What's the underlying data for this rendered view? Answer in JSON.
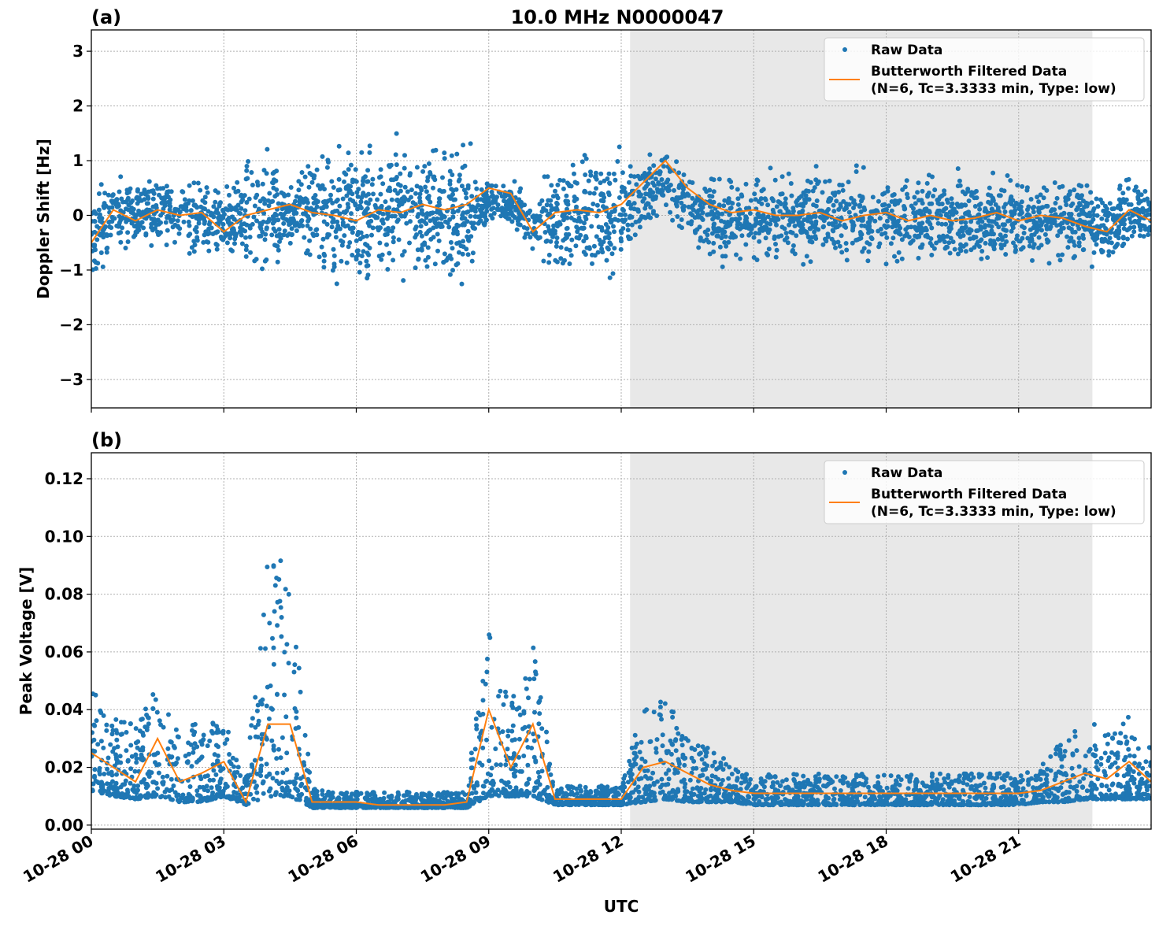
{
  "chart_data": [
    {
      "type": "scatter",
      "panel_label": "(a)",
      "title": "10.0 MHz N0000047",
      "xlabel": "",
      "ylabel": "Doppler Shift [Hz]",
      "xlim_hours": [
        0,
        24
      ],
      "ylim": [
        -3.52,
        3.39
      ],
      "y_ticks": [
        3,
        2,
        1,
        0,
        -1,
        -2,
        -3
      ],
      "y_tick_labels": [
        "3",
        "2",
        "1",
        "0",
        "−1",
        "−2",
        "−3"
      ],
      "grid": true,
      "legend_position": "top-right",
      "shaded_span_hours": [
        12.2,
        22.67
      ],
      "x_hours": [
        0,
        0.5,
        1,
        1.5,
        2,
        2.5,
        3,
        3.5,
        4,
        4.5,
        5,
        5.5,
        6,
        6.5,
        7,
        7.5,
        8,
        8.5,
        9,
        9.5,
        10,
        10.5,
        11,
        11.5,
        12,
        12.5,
        13,
        13.5,
        14,
        14.5,
        15,
        15.5,
        16,
        16.5,
        17,
        17.5,
        18,
        18.5,
        19,
        19.5,
        20,
        20.5,
        21,
        21.5,
        22,
        22.5,
        23,
        23.5,
        24
      ],
      "series": [
        {
          "name": "Raw Data",
          "kind": "points",
          "color": "#1f77b4",
          "lower": [
            -1.4,
            -1.0,
            -0.8,
            -0.8,
            -0.9,
            -1.0,
            -1.0,
            -1.6,
            -1.6,
            -0.6,
            -1.5,
            -1.5,
            -1.5,
            -1.5,
            -1.5,
            -1.5,
            -1.5,
            -1.5,
            -0.3,
            -0.3,
            -0.8,
            -1.5,
            -1.5,
            -1.5,
            -1.5,
            -0.4,
            -0.3,
            -0.6,
            -1.1,
            -1.1,
            -1.1,
            -1.1,
            -1.1,
            -1.1,
            -1.1,
            -1.1,
            -1.1,
            -1.1,
            -1.1,
            -1.1,
            -1.1,
            -1.1,
            -1.1,
            -1.1,
            -1.1,
            -1.1,
            -1.2,
            -0.9,
            -0.8
          ],
          "upper": [
            0.8,
            0.9,
            0.9,
            1.0,
            0.9,
            0.9,
            0.7,
            1.5,
            1.5,
            0.6,
            1.6,
            1.6,
            1.6,
            1.6,
            1.6,
            1.6,
            1.6,
            1.5,
            0.8,
            0.8,
            0.4,
            1.4,
            1.4,
            1.4,
            1.4,
            1.2,
            1.5,
            1.0,
            1.0,
            1.0,
            1.0,
            1.0,
            1.0,
            1.0,
            1.0,
            1.0,
            1.0,
            1.0,
            1.0,
            1.0,
            1.0,
            1.0,
            1.0,
            1.0,
            1.0,
            1.0,
            0.8,
            0.9,
            0.8
          ]
        },
        {
          "name": "Butterworth Filtered Data\n(N=6, Tc=3.3333 min, Type: low)",
          "kind": "line",
          "color": "#ff7f0e",
          "values": [
            -0.5,
            0.1,
            -0.1,
            0.1,
            0.0,
            0.05,
            -0.3,
            0.0,
            0.1,
            0.2,
            0.05,
            0.0,
            -0.1,
            0.1,
            0.05,
            0.2,
            0.1,
            0.2,
            0.5,
            0.4,
            -0.3,
            0.05,
            0.1,
            0.05,
            0.2,
            0.6,
            1.0,
            0.5,
            0.2,
            0.05,
            0.1,
            0.0,
            0.0,
            0.05,
            -0.1,
            0.0,
            0.05,
            -0.1,
            0.0,
            -0.1,
            -0.05,
            0.05,
            -0.1,
            0.0,
            -0.05,
            -0.2,
            -0.3,
            0.1,
            -0.1
          ]
        }
      ]
    },
    {
      "type": "scatter",
      "panel_label": "(b)",
      "title": "",
      "xlabel": "UTC",
      "ylabel": "Peak Voltage [V]",
      "xlim_hours": [
        0,
        24
      ],
      "ylim": [
        -0.0014,
        0.129
      ],
      "y_ticks": [
        0.12,
        0.1,
        0.08,
        0.06,
        0.04,
        0.02,
        0.0
      ],
      "y_tick_labels": [
        "0.12",
        "0.10",
        "0.08",
        "0.06",
        "0.04",
        "0.02",
        "0.00"
      ],
      "x_ticks_hours": [
        0,
        3,
        6,
        9,
        12,
        15,
        18,
        21
      ],
      "x_tick_labels": [
        "10-28 00",
        "10-28 03",
        "10-28 06",
        "10-28 09",
        "10-28 12",
        "10-28 15",
        "10-28 18",
        "10-28 21"
      ],
      "grid": true,
      "legend_position": "top-right",
      "shaded_span_hours": [
        12.2,
        22.67
      ],
      "x_hours": [
        0,
        0.5,
        1,
        1.5,
        2,
        2.5,
        3,
        3.5,
        4,
        4.5,
        5,
        5.5,
        6,
        6.5,
        7,
        7.5,
        8,
        8.5,
        9,
        9.5,
        10,
        10.5,
        11,
        11.5,
        12,
        12.5,
        13,
        13.5,
        14,
        14.5,
        15,
        15.5,
        16,
        16.5,
        17,
        17.5,
        18,
        18.5,
        19,
        19.5,
        20,
        20.5,
        21,
        21.5,
        22,
        22.5,
        23,
        23.5,
        24
      ],
      "series": [
        {
          "name": "Raw Data",
          "kind": "points",
          "color": "#1f77b4",
          "lower": [
            0.012,
            0.01,
            0.009,
            0.01,
            0.008,
            0.008,
            0.01,
            0.007,
            0.01,
            0.01,
            0.006,
            0.006,
            0.006,
            0.006,
            0.006,
            0.006,
            0.006,
            0.006,
            0.01,
            0.01,
            0.01,
            0.007,
            0.007,
            0.007,
            0.007,
            0.008,
            0.009,
            0.008,
            0.008,
            0.008,
            0.007,
            0.007,
            0.007,
            0.007,
            0.007,
            0.007,
            0.007,
            0.007,
            0.007,
            0.007,
            0.007,
            0.007,
            0.007,
            0.008,
            0.008,
            0.009,
            0.009,
            0.009,
            0.009
          ],
          "upper": [
            0.045,
            0.035,
            0.035,
            0.045,
            0.03,
            0.035,
            0.035,
            0.015,
            0.09,
            0.08,
            0.012,
            0.011,
            0.011,
            0.011,
            0.011,
            0.011,
            0.011,
            0.011,
            0.07,
            0.04,
            0.06,
            0.013,
            0.013,
            0.013,
            0.013,
            0.04,
            0.04,
            0.035,
            0.025,
            0.02,
            0.017,
            0.017,
            0.017,
            0.017,
            0.017,
            0.017,
            0.017,
            0.017,
            0.017,
            0.017,
            0.017,
            0.017,
            0.017,
            0.02,
            0.028,
            0.035,
            0.03,
            0.035,
            0.025
          ]
        },
        {
          "name": "Butterworth Filtered Data\n(N=6, Tc=3.3333 min, Type: low)",
          "kind": "line",
          "color": "#ff7f0e",
          "values": [
            0.025,
            0.02,
            0.015,
            0.03,
            0.015,
            0.018,
            0.022,
            0.008,
            0.035,
            0.035,
            0.008,
            0.008,
            0.008,
            0.007,
            0.007,
            0.007,
            0.007,
            0.008,
            0.04,
            0.02,
            0.035,
            0.009,
            0.009,
            0.009,
            0.009,
            0.02,
            0.022,
            0.018,
            0.014,
            0.012,
            0.011,
            0.011,
            0.011,
            0.011,
            0.011,
            0.011,
            0.011,
            0.011,
            0.011,
            0.011,
            0.011,
            0.011,
            0.011,
            0.012,
            0.015,
            0.018,
            0.016,
            0.022,
            0.015
          ]
        }
      ]
    }
  ],
  "legend": {
    "raw_label": "Raw Data",
    "filtered_line1": "Butterworth Filtered Data",
    "filtered_line2": "(N=6, Tc=3.3333 min, Type: low)"
  },
  "colors": {
    "raw": "#1f77b4",
    "filtered": "#ff7f0e",
    "shade": "#e8e8e8"
  }
}
